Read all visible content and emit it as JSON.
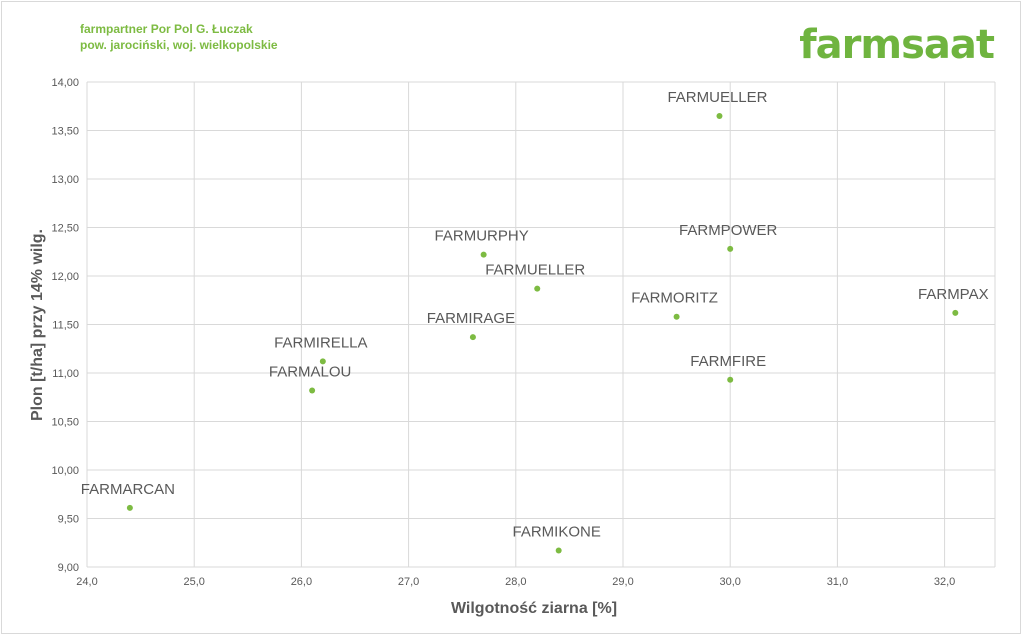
{
  "header": {
    "line1": "farmpartner Por Pol G. Łuczak",
    "line2": "pow. jarociński, woj. wielkopolskie"
  },
  "logo": {
    "text": "farmsaat"
  },
  "colors": {
    "accent": "#7dbb42",
    "point": "#7dbb42",
    "grid": "#d9d9d9",
    "text": "#595959"
  },
  "chart_data": {
    "type": "scatter",
    "xlabel": "Wilgotność ziarna [%]",
    "ylabel": "Plon [t/ha] przy 14% wilg.",
    "xlim": [
      24.0,
      32.5
    ],
    "ylim": [
      9.0,
      14.0
    ],
    "grid": true,
    "x_ticks": [
      "24,0",
      "25,0",
      "26,0",
      "27,0",
      "28,0",
      "29,0",
      "30,0",
      "31,0",
      "32,0"
    ],
    "y_ticks": [
      "9,00",
      "9,50",
      "10,00",
      "10,50",
      "11,00",
      "11,50",
      "12,00",
      "12,50",
      "13,00",
      "13,50",
      "14,00"
    ],
    "points": [
      {
        "label": "FARMARCAN",
        "x": 24.4,
        "y": 9.61
      },
      {
        "label": "FARMALOU",
        "x": 26.1,
        "y": 10.82
      },
      {
        "label": "FARMIRELLA",
        "x": 26.2,
        "y": 11.12
      },
      {
        "label": "FARMIRAGE",
        "x": 27.6,
        "y": 11.37
      },
      {
        "label": "FARMURPHY",
        "x": 27.7,
        "y": 12.22
      },
      {
        "label": "FARMUELLER",
        "x": 28.2,
        "y": 11.87
      },
      {
        "label": "FARMIKONE",
        "x": 28.4,
        "y": 9.17
      },
      {
        "label": "FARMORITZ",
        "x": 29.5,
        "y": 11.58
      },
      {
        "label": "FARMUELLER",
        "x": 29.9,
        "y": 13.65
      },
      {
        "label": "FARMPOWER",
        "x": 30.0,
        "y": 12.28
      },
      {
        "label": "FARMFIRE",
        "x": 30.0,
        "y": 10.93
      },
      {
        "label": "FARMPAX",
        "x": 32.1,
        "y": 11.62
      }
    ]
  }
}
